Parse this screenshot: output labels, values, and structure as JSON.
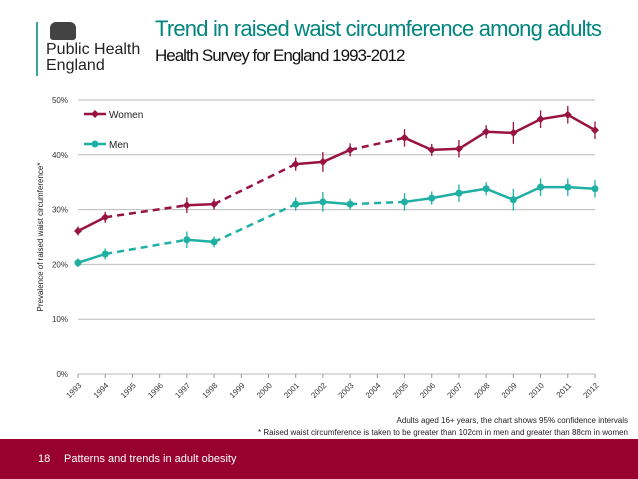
{
  "header": {
    "org_name": "Public Health England",
    "title": "Trend in raised waist circumference among adults",
    "subtitle": "Health Survey for England 1993-2012"
  },
  "chart_data": {
    "type": "line",
    "title": "Trend in raised waist circumference among adults",
    "subtitle": "Health Survey for England 1993-2012",
    "ylabel": "Prevalence of raised waist circumference*",
    "xlabel": "",
    "ylim": [
      0,
      50
    ],
    "yticks": [
      "0%",
      "10%",
      "20%",
      "30%",
      "40%",
      "50%"
    ],
    "categories": [
      "1993",
      "1994",
      "1995",
      "1996",
      "1997",
      "1998",
      "1999",
      "2000",
      "2001",
      "2002",
      "2003",
      "2004",
      "2005",
      "2006",
      "2007",
      "2008",
      "2009",
      "2010",
      "2011",
      "2012"
    ],
    "grid": true,
    "legend_placement": "top-left",
    "error_bars": "95% confidence intervals",
    "dashed_gaps": [
      [
        "1994",
        "1997"
      ],
      [
        "1998",
        "2001"
      ],
      [
        "2003",
        "2005"
      ]
    ],
    "series": [
      {
        "name": "Women",
        "color": "#98133f",
        "marker": "diamond",
        "x": [
          "1993",
          "1994",
          "1997",
          "1998",
          "2001",
          "2002",
          "2003",
          "2005",
          "2006",
          "2007",
          "2008",
          "2009",
          "2010",
          "2011",
          "2012"
        ],
        "values": [
          26.1,
          28.6,
          30.8,
          31.0,
          38.3,
          38.7,
          40.9,
          43.1,
          40.9,
          41.1,
          44.2,
          44.0,
          46.5,
          47.3,
          44.5
        ],
        "ci": [
          0.8,
          1.0,
          1.4,
          1.0,
          1.2,
          1.8,
          1.2,
          1.6,
          1.1,
          1.6,
          1.2,
          2.0,
          1.6,
          1.6,
          1.6
        ]
      },
      {
        "name": "Men",
        "color": "#1fb0a3",
        "marker": "circle",
        "x": [
          "1993",
          "1994",
          "1997",
          "1998",
          "2001",
          "2002",
          "2003",
          "2005",
          "2006",
          "2007",
          "2008",
          "2009",
          "2010",
          "2011",
          "2012"
        ],
        "values": [
          20.3,
          21.9,
          24.5,
          24.1,
          31.0,
          31.4,
          31.0,
          31.4,
          32.1,
          33.0,
          33.8,
          31.8,
          34.1,
          34.1,
          33.8
        ],
        "ci": [
          0.8,
          1.0,
          1.5,
          1.0,
          1.2,
          1.8,
          1.0,
          1.6,
          1.2,
          1.6,
          1.2,
          2.0,
          1.6,
          1.6,
          1.6
        ]
      }
    ]
  },
  "notes": {
    "line1": "Adults aged 16+ years, the chart shows 95% confidence intervals",
    "line2": "* Raised waist circumference is taken to be greater than 102cm in men and greater than 88cm in women"
  },
  "footer": {
    "page_number": "18",
    "section": "Patterns and trends in adult obesity"
  }
}
